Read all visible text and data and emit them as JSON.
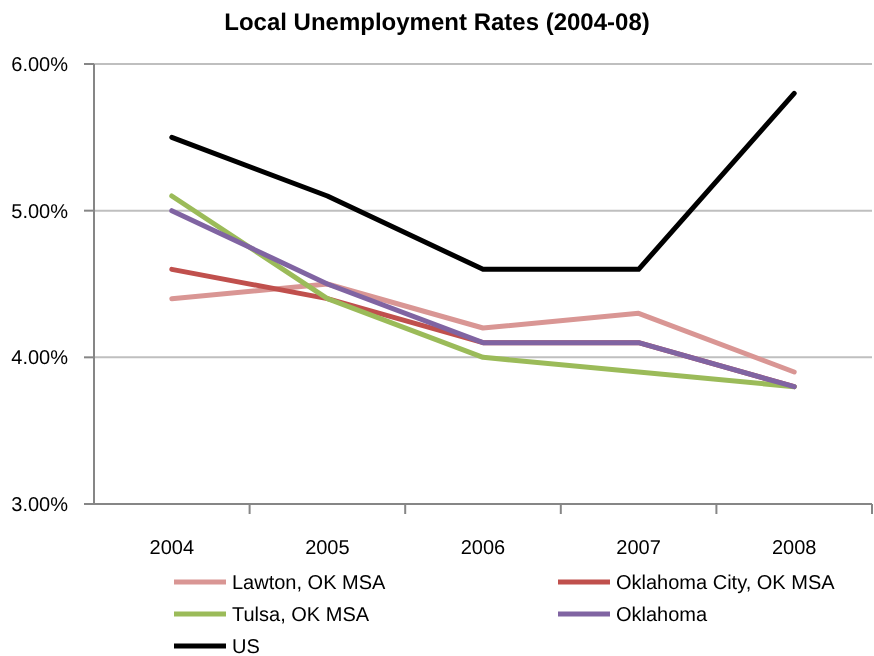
{
  "chart_data": {
    "type": "line",
    "title": "Local Unemployment Rates (2004-08)",
    "categories": [
      "2004",
      "2005",
      "2006",
      "2007",
      "2008"
    ],
    "series": [
      {
        "name": "Lawton, OK MSA",
        "color": "#d99694",
        "values": [
          4.4,
          4.5,
          4.2,
          4.3,
          3.9
        ]
      },
      {
        "name": "Oklahoma City, OK MSA",
        "color": "#c0504d",
        "values": [
          4.6,
          4.4,
          4.1,
          4.1,
          3.8
        ]
      },
      {
        "name": "Tulsa, OK MSA",
        "color": "#9bbb59",
        "values": [
          5.1,
          4.4,
          4.0,
          3.9,
          3.8
        ]
      },
      {
        "name": "Oklahoma",
        "color": "#8064a2",
        "values": [
          5.0,
          4.5,
          4.1,
          4.1,
          3.8
        ]
      },
      {
        "name": "US",
        "color": "#000000",
        "values": [
          5.5,
          5.1,
          4.6,
          4.6,
          5.8
        ]
      }
    ],
    "ylim": [
      3,
      6
    ],
    "yticks": [
      {
        "value": 3,
        "label": "3.00%"
      },
      {
        "value": 4,
        "label": "4.00%"
      },
      {
        "value": 5,
        "label": "5.00%"
      },
      {
        "value": 6,
        "label": "6.00%"
      }
    ],
    "grid": "y",
    "legend": "bottom",
    "marker": "none",
    "line_style": "solid"
  }
}
